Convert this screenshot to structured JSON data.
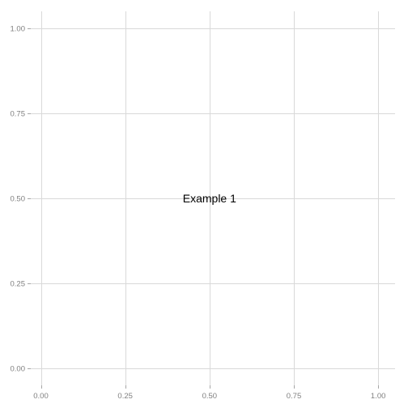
{
  "chart_data": {
    "type": "scatter",
    "title": "",
    "xlabel": "",
    "ylabel": "",
    "xlim": [
      -0.03,
      1.05
    ],
    "ylim": [
      -0.05,
      1.05
    ],
    "x_ticks": [
      0,
      0.25,
      0.5,
      0.75,
      1
    ],
    "x_tick_labels": [
      "0.00",
      "0.25",
      "0.50",
      "0.75",
      "1.00"
    ],
    "y_ticks": [
      0,
      0.25,
      0.5,
      0.75,
      1
    ],
    "y_tick_labels": [
      "0.00",
      "0.25",
      "0.50",
      "0.75",
      "1.00"
    ],
    "grid": true,
    "annotations": [
      {
        "x": 0.5,
        "y": 0.5,
        "text": "Example 1"
      }
    ],
    "colors": {
      "grid": "#d9d9d9",
      "tick_label": "#7f7f7f",
      "annotation": "#000000",
      "background": "#ffffff"
    }
  }
}
